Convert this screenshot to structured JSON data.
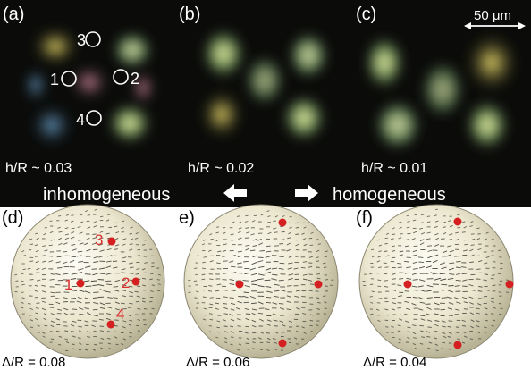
{
  "top_row": {
    "panels": [
      {
        "id": "a",
        "label": "(a)",
        "ratio": "h/R ~ 0.03",
        "markers": [
          {
            "n": "3"
          },
          {
            "n": "1"
          },
          {
            "n": "2"
          },
          {
            "n": "4"
          }
        ]
      },
      {
        "id": "b",
        "label": "(b)",
        "ratio": "h/R ~ 0.02"
      },
      {
        "id": "c",
        "label": "(c)",
        "ratio": "h/R ~ 0.01"
      }
    ],
    "scale_bar": "50 μm"
  },
  "middle": {
    "left_text": "inhomogeneous",
    "right_text": "homogeneous"
  },
  "bottom_row": {
    "panels": [
      {
        "id": "d",
        "label": "(d)",
        "ratio": "Δ/R = 0.08",
        "defect_labels": [
          "3",
          "1",
          "2",
          "4"
        ]
      },
      {
        "id": "e",
        "label": "e)",
        "ratio": "Δ/R = 0.06"
      },
      {
        "id": "f",
        "label": "(f)",
        "ratio": "Δ/R = 0.04"
      }
    ]
  },
  "colors": {
    "micrograph_bg": "#0b0c0a",
    "sphere_light": "#fbf9ee",
    "sphere_dark": "#bcb79a",
    "defect": "#d42020",
    "defect_label": "#d83030"
  }
}
